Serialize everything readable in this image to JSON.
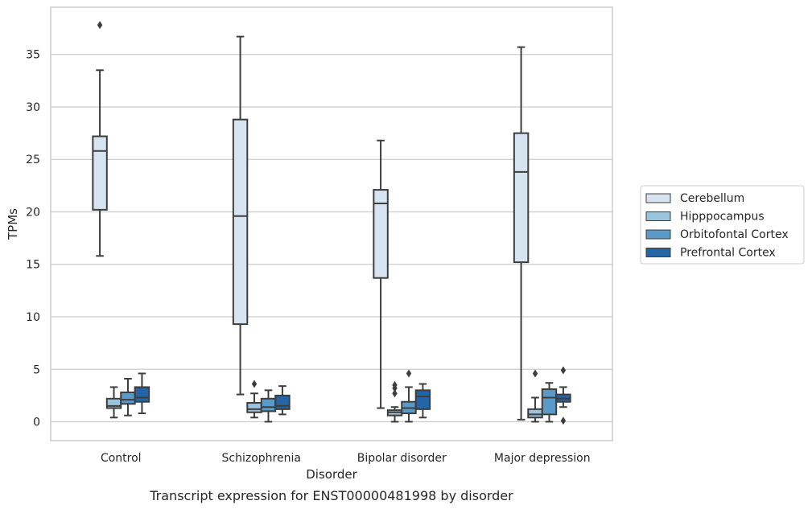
{
  "chart_data": {
    "type": "box",
    "title": "Transcript expression for ENST00000481998 by disorder",
    "xlabel": "Disorder",
    "ylabel": "TPMs",
    "ylim": [
      -1.8,
      39.5
    ],
    "yticks": [
      0,
      5,
      10,
      15,
      20,
      25,
      30,
      35
    ],
    "grid": true,
    "legend_position": "right",
    "categories": [
      "Control",
      "Schizophrenia",
      "Bipolar disorder",
      "Major depression"
    ],
    "series": [
      {
        "name": "Cerebellum",
        "color": "#d6e4f2",
        "boxes": [
          {
            "whislo": 15.8,
            "q1": 20.2,
            "med": 25.8,
            "q3": 27.2,
            "whishi": 33.5,
            "fliers": [
              37.8
            ]
          },
          {
            "whislo": 2.6,
            "q1": 9.3,
            "med": 19.6,
            "q3": 28.8,
            "whishi": 36.7,
            "fliers": []
          },
          {
            "whislo": 1.3,
            "q1": 13.7,
            "med": 20.8,
            "q3": 22.1,
            "whishi": 26.8,
            "fliers": []
          },
          {
            "whislo": 0.2,
            "q1": 15.2,
            "med": 23.8,
            "q3": 27.5,
            "whishi": 35.7,
            "fliers": []
          }
        ]
      },
      {
        "name": "Hipppocampus",
        "color": "#9ac3de",
        "boxes": [
          {
            "whislo": 0.4,
            "q1": 1.3,
            "med": 1.5,
            "q3": 2.2,
            "whishi": 3.3,
            "fliers": []
          },
          {
            "whislo": 0.4,
            "q1": 0.9,
            "med": 1.2,
            "q3": 1.8,
            "whishi": 2.7,
            "fliers": [
              3.6
            ]
          },
          {
            "whislo": 0.0,
            "q1": 0.6,
            "med": 0.9,
            "q3": 1.1,
            "whishi": 1.4,
            "fliers": [
              2.7,
              3.2,
              3.5
            ]
          },
          {
            "whislo": 0.0,
            "q1": 0.4,
            "med": 0.7,
            "q3": 1.2,
            "whishi": 2.3,
            "fliers": [
              4.6
            ]
          }
        ]
      },
      {
        "name": "Orbitofontal Cortex",
        "color": "#5a9ac9",
        "boxes": [
          {
            "whislo": 0.6,
            "q1": 1.7,
            "med": 2.1,
            "q3": 2.8,
            "whishi": 4.1,
            "fliers": []
          },
          {
            "whislo": 0.0,
            "q1": 1.0,
            "med": 1.4,
            "q3": 2.2,
            "whishi": 3.0,
            "fliers": []
          },
          {
            "whislo": 0.0,
            "q1": 0.8,
            "med": 1.3,
            "q3": 1.9,
            "whishi": 3.3,
            "fliers": [
              4.6
            ]
          },
          {
            "whislo": 0.0,
            "q1": 0.7,
            "med": 2.3,
            "q3": 3.1,
            "whishi": 3.7,
            "fliers": []
          }
        ]
      },
      {
        "name": "Prefrontal Cortex",
        "color": "#2465a6",
        "boxes": [
          {
            "whislo": 0.8,
            "q1": 1.9,
            "med": 2.3,
            "q3": 3.3,
            "whishi": 4.6,
            "fliers": []
          },
          {
            "whislo": 0.7,
            "q1": 1.2,
            "med": 1.5,
            "q3": 2.5,
            "whishi": 3.4,
            "fliers": []
          },
          {
            "whislo": 0.4,
            "q1": 1.2,
            "med": 2.4,
            "q3": 3.0,
            "whishi": 3.6,
            "fliers": []
          },
          {
            "whislo": 1.4,
            "q1": 1.9,
            "med": 2.2,
            "q3": 2.6,
            "whishi": 3.3,
            "fliers": [
              0.1,
              4.9
            ]
          }
        ]
      }
    ]
  }
}
